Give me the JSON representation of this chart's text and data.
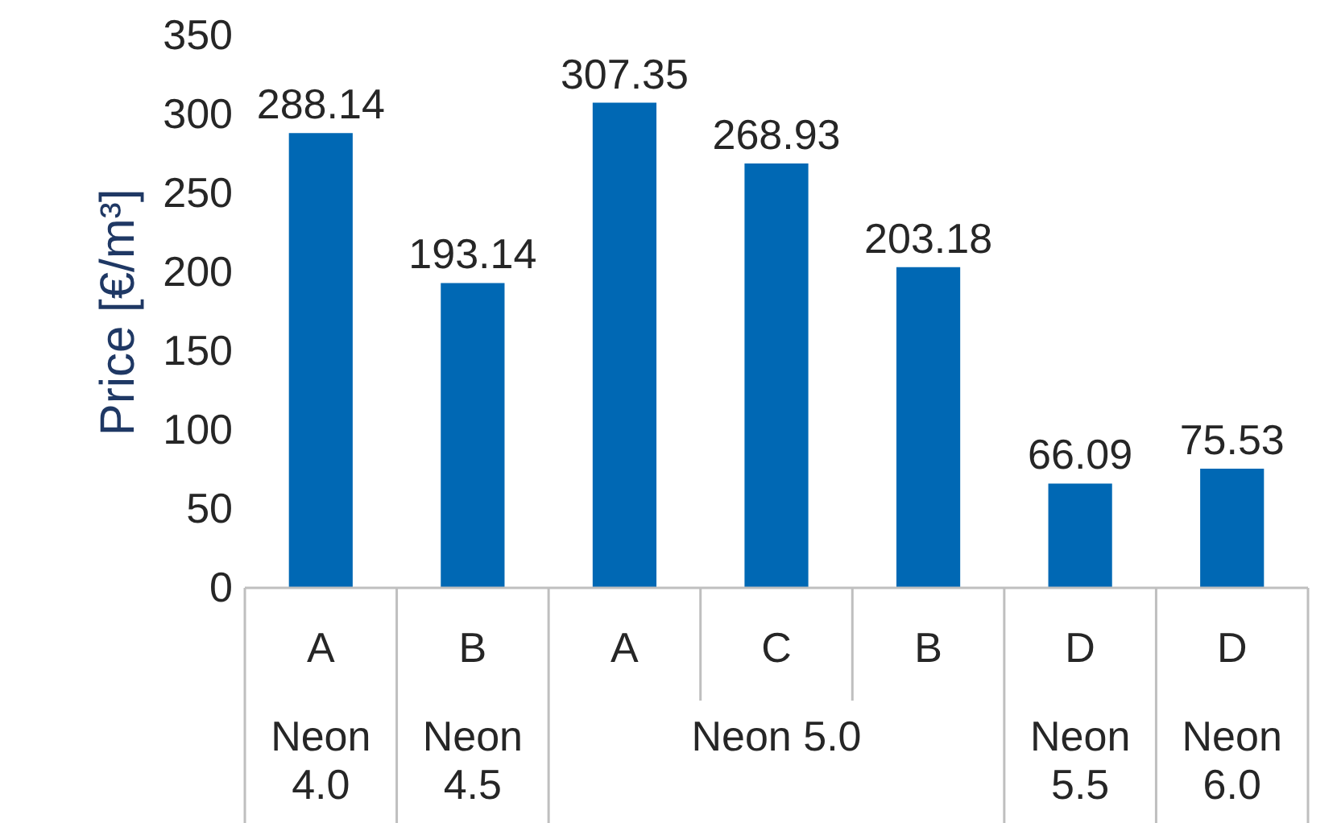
{
  "chart_data": {
    "type": "bar",
    "ylabel": "Price [€/m³]",
    "categories": [
      "A",
      "B",
      "A",
      "C",
      "B",
      "D",
      "D"
    ],
    "annotations": [
      "Neon 4.0",
      "Neon 4.5",
      "Neon 5.0",
      "Neon 5.5",
      "Neon 6.0"
    ],
    "values": [
      288.14,
      193.14,
      307.35,
      268.93,
      203.18,
      66.09,
      75.53
    ],
    "color": "#0068b4",
    "data_labels": true,
    "grid": false,
    "ylim": [
      0,
      350
    ],
    "yticks": [
      0,
      50,
      100,
      150,
      200,
      250,
      300,
      350
    ]
  }
}
